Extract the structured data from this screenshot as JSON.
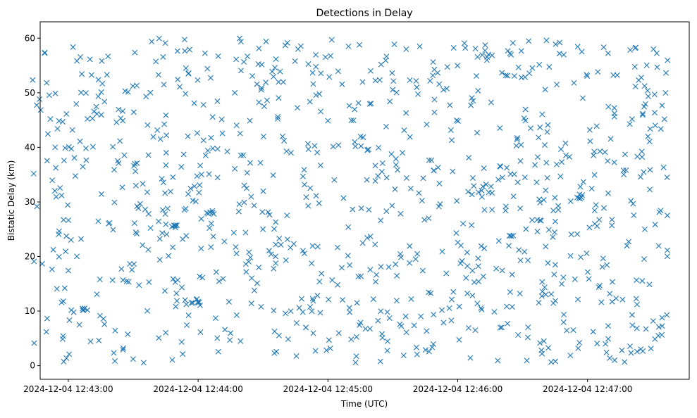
{
  "chart_data": {
    "type": "scatter",
    "title": "Detections in Delay",
    "xlabel": "Time (UTC)",
    "ylabel": "Bistatic Delay (km)",
    "x_axis_type": "time",
    "x_range": [
      "2024-12-04 12:42:47",
      "2024-12-04 12:47:47"
    ],
    "x_data_range": [
      "2024-12-04 12:42:43",
      "2024-12-04 12:47:37"
    ],
    "ylim": [
      -2.5,
      63
    ],
    "x_ticks": [
      "2024-12-04 12:43:00",
      "2024-12-04 12:44:00",
      "2024-12-04 12:45:00",
      "2024-12-04 12:46:00",
      "2024-12-04 12:47:00"
    ],
    "y_ticks": [
      0,
      10,
      20,
      30,
      40,
      50,
      60
    ],
    "grid": false,
    "marker": "x",
    "color": "#1f77b4",
    "point_count": 1000,
    "value_ranges": {
      "y_min": 0.5,
      "y_max": 60
    },
    "clusters": [
      {
        "time": "2024-12-04 12:43:07",
        "delay": 10.2
      },
      {
        "time": "2024-12-04 12:43:49",
        "delay": 25.5
      },
      {
        "time": "2024-12-04 12:43:58",
        "delay": 11.8
      },
      {
        "time": "2024-12-04 12:44:06",
        "delay": 28
      },
      {
        "time": "2024-12-04 12:46:56",
        "delay": 31
      }
    ]
  }
}
